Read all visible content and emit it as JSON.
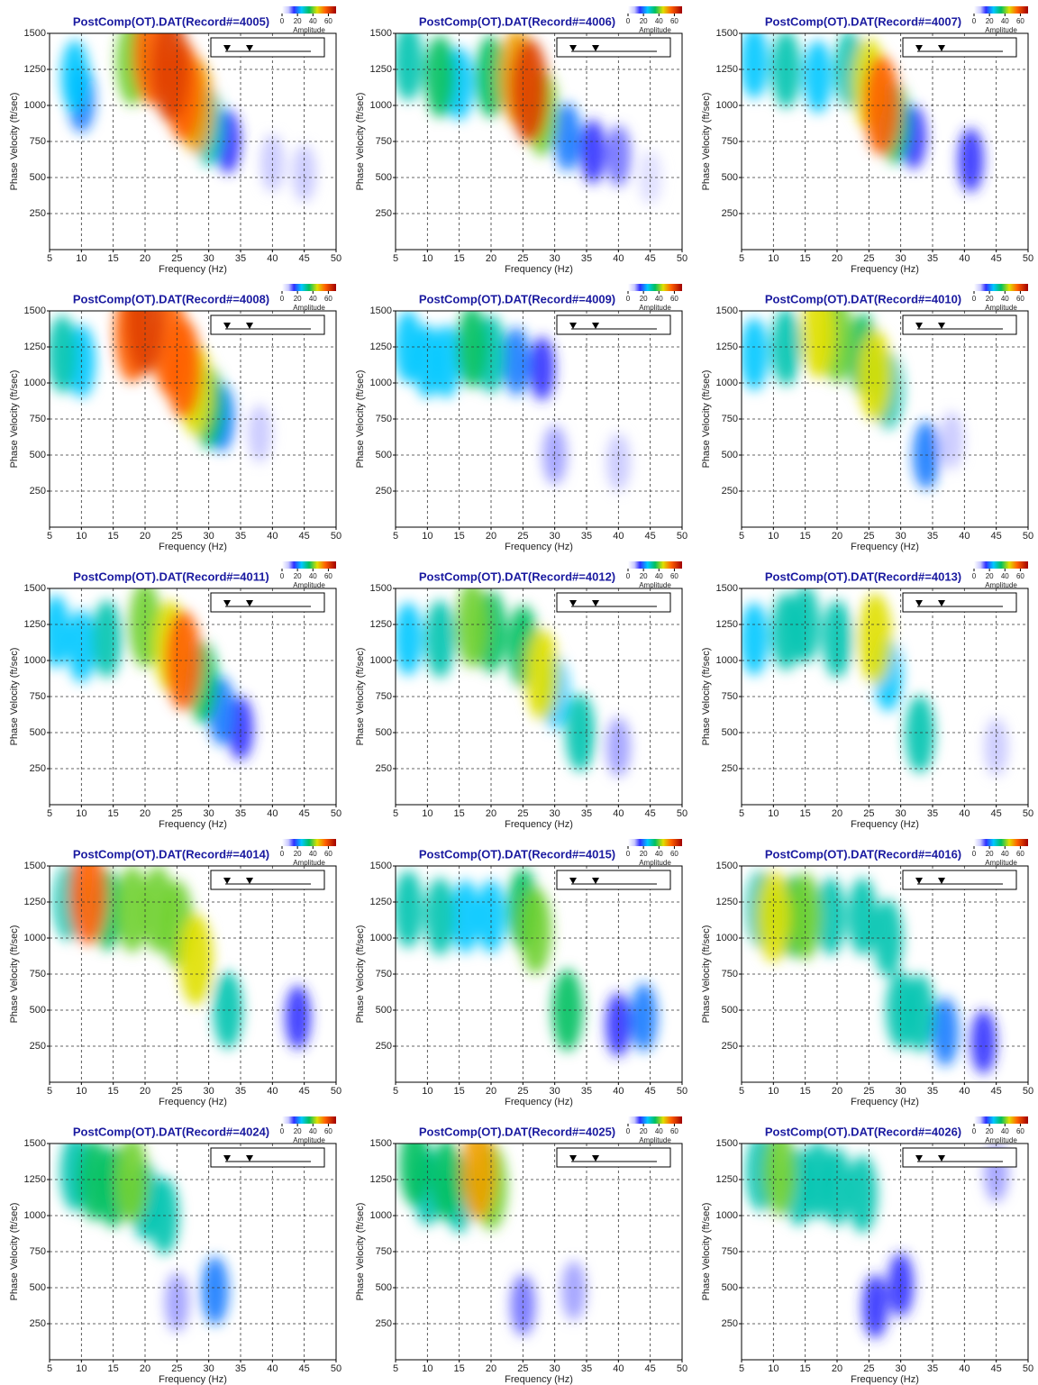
{
  "chart_data": [
    {
      "type": "heatmap",
      "title": "PostComp(OT).DAT(Record#=4005)",
      "xlabel": "Frequency (Hz)",
      "ylabel": "Phase Velocity (ft/sec)",
      "xlim": [
        5,
        50
      ],
      "ylim": [
        0,
        1500
      ],
      "xticks": [
        5,
        10,
        15,
        20,
        25,
        30,
        35,
        40,
        45,
        50
      ],
      "yticks": [
        250,
        500,
        750,
        1000,
        1250,
        1500
      ],
      "grid": true,
      "colorbar": {
        "label": "Amplitude",
        "lim": [
          0,
          70
        ],
        "ticks": [
          0,
          20,
          40,
          60
        ]
      },
      "x": [
        9,
        10,
        18,
        21,
        24,
        26,
        28,
        30,
        33,
        40,
        45
      ],
      "y": [
        1200,
        1050,
        1300,
        1350,
        1250,
        1100,
        1000,
        850,
        750,
        600,
        530
      ],
      "values": [
        25,
        20,
        40,
        55,
        60,
        55,
        50,
        30,
        15,
        8,
        8
      ]
    },
    {
      "type": "heatmap",
      "title": "PostComp(OT).DAT(Record#=4006)",
      "xlabel": "Frequency (Hz)",
      "ylabel": "Phase Velocity (ft/sec)",
      "xlim": [
        5,
        50
      ],
      "ylim": [
        0,
        1500
      ],
      "xticks": [
        5,
        10,
        15,
        20,
        25,
        30,
        35,
        40,
        45,
        50
      ],
      "yticks": [
        250,
        500,
        750,
        1000,
        1250,
        1500
      ],
      "grid": true,
      "colorbar": {
        "label": "Amplitude",
        "lim": [
          0,
          70
        ],
        "ticks": [
          0,
          20,
          40,
          60
        ]
      },
      "x": [
        7,
        12,
        15,
        20,
        24,
        26,
        28,
        32,
        36,
        40,
        45
      ],
      "y": [
        1300,
        1200,
        1150,
        1200,
        1200,
        1100,
        950,
        780,
        680,
        650,
        500
      ],
      "values": [
        30,
        35,
        25,
        35,
        50,
        60,
        40,
        20,
        15,
        12,
        5
      ]
    },
    {
      "type": "heatmap",
      "title": "PostComp(OT).DAT(Record#=4007)",
      "xlabel": "Frequency (Hz)",
      "ylabel": "Phase Velocity (ft/sec)",
      "xlim": [
        5,
        50
      ],
      "ylim": [
        0,
        1500
      ],
      "xticks": [
        5,
        10,
        15,
        20,
        25,
        30,
        35,
        40,
        45,
        50
      ],
      "yticks": [
        250,
        500,
        750,
        1000,
        1250,
        1500
      ],
      "grid": true,
      "colorbar": {
        "label": "Amplitude",
        "lim": [
          0,
          70
        ],
        "ticks": [
          0,
          20,
          40,
          60
        ]
      },
      "x": [
        7,
        12,
        17,
        22,
        25,
        27,
        29,
        32,
        41
      ],
      "y": [
        1300,
        1250,
        1200,
        1250,
        1150,
        1000,
        880,
        780,
        620
      ],
      "values": [
        25,
        30,
        25,
        30,
        45,
        55,
        35,
        15,
        15
      ]
    },
    {
      "type": "heatmap",
      "title": "PostComp(OT).DAT(Record#=4008)",
      "xlabel": "Frequency (Hz)",
      "ylabel": "Phase Velocity (ft/sec)",
      "xlim": [
        5,
        50
      ],
      "ylim": [
        0,
        1500
      ],
      "xticks": [
        5,
        10,
        15,
        20,
        25,
        30,
        35,
        40,
        45,
        50
      ],
      "yticks": [
        250,
        500,
        750,
        1000,
        1250,
        1500
      ],
      "grid": true,
      "colorbar": {
        "label": "Amplitude",
        "lim": [
          0,
          70
        ],
        "ticks": [
          0,
          20,
          40,
          60
        ]
      },
      "x": [
        7,
        10,
        18,
        20,
        24,
        26,
        28,
        30,
        32,
        38
      ],
      "y": [
        1200,
        1150,
        1350,
        1420,
        1250,
        1100,
        950,
        830,
        760,
        650
      ],
      "values": [
        30,
        25,
        55,
        60,
        55,
        55,
        45,
        35,
        20,
        8
      ]
    },
    {
      "type": "heatmap",
      "title": "PostComp(OT).DAT(Record#=4009)",
      "xlabel": "Frequency (Hz)",
      "ylabel": "Phase Velocity (ft/sec)",
      "xlim": [
        5,
        50
      ],
      "ylim": [
        0,
        1500
      ],
      "xticks": [
        5,
        10,
        15,
        20,
        25,
        30,
        35,
        40,
        45,
        50
      ],
      "yticks": [
        250,
        500,
        750,
        1000,
        1250,
        1500
      ],
      "grid": true,
      "colorbar": {
        "label": "Amplitude",
        "lim": [
          0,
          70
        ],
        "ticks": [
          0,
          20,
          40,
          60
        ]
      },
      "x": [
        7,
        10,
        13,
        17,
        20,
        24,
        28,
        30,
        40
      ],
      "y": [
        1250,
        1150,
        1150,
        1250,
        1200,
        1150,
        1100,
        500,
        450
      ],
      "values": [
        25,
        25,
        25,
        35,
        30,
        20,
        15,
        10,
        8
      ]
    },
    {
      "type": "heatmap",
      "title": "PostComp(OT).DAT(Record#=4010)",
      "xlabel": "Frequency (Hz)",
      "ylabel": "Phase Velocity (ft/sec)",
      "xlim": [
        5,
        50
      ],
      "ylim": [
        0,
        1500
      ],
      "xticks": [
        5,
        10,
        15,
        20,
        25,
        30,
        35,
        40,
        45,
        50
      ],
      "yticks": [
        250,
        500,
        750,
        1000,
        1250,
        1500
      ],
      "grid": true,
      "colorbar": {
        "label": "Amplitude",
        "lim": [
          0,
          70
        ],
        "ticks": [
          0,
          20,
          40,
          60
        ]
      },
      "x": [
        7,
        12,
        17,
        20,
        24,
        26,
        28,
        34,
        38
      ],
      "y": [
        1200,
        1250,
        1350,
        1300,
        1200,
        1050,
        950,
        500,
        600
      ],
      "values": [
        25,
        30,
        45,
        40,
        35,
        45,
        30,
        20,
        8
      ]
    },
    {
      "type": "heatmap",
      "title": "PostComp(OT).DAT(Record#=4011)",
      "xlabel": "Frequency (Hz)",
      "ylabel": "Phase Velocity (ft/sec)",
      "xlim": [
        5,
        50
      ],
      "ylim": [
        0,
        1500
      ],
      "xticks": [
        5,
        10,
        15,
        20,
        25,
        30,
        35,
        40,
        45,
        50
      ],
      "yticks": [
        250,
        500,
        750,
        1000,
        1250,
        1500
      ],
      "grid": true,
      "colorbar": {
        "label": "Amplitude",
        "lim": [
          0,
          70
        ],
        "ticks": [
          0,
          20,
          40,
          60
        ]
      },
      "x": [
        6,
        10,
        14,
        20,
        24,
        26,
        29,
        32,
        35
      ],
      "y": [
        1200,
        1100,
        1150,
        1250,
        1100,
        1000,
        850,
        650,
        530
      ],
      "values": [
        25,
        25,
        30,
        40,
        45,
        55,
        35,
        20,
        15
      ]
    },
    {
      "type": "heatmap",
      "title": "PostComp(OT).DAT(Record#=4012)",
      "xlabel": "Frequency (Hz)",
      "ylabel": "Phase Velocity (ft/sec)",
      "xlim": [
        5,
        50
      ],
      "ylim": [
        0,
        1500
      ],
      "xticks": [
        5,
        10,
        15,
        20,
        25,
        30,
        35,
        40,
        45,
        50
      ],
      "yticks": [
        250,
        500,
        750,
        1000,
        1250,
        1500
      ],
      "grid": true,
      "colorbar": {
        "label": "Amplitude",
        "lim": [
          0,
          70
        ],
        "ticks": [
          0,
          20,
          40,
          60
        ]
      },
      "x": [
        7,
        12,
        17,
        20,
        25,
        28,
        30,
        34,
        40
      ],
      "y": [
        1150,
        1150,
        1250,
        1200,
        1100,
        900,
        780,
        500,
        400
      ],
      "values": [
        25,
        30,
        40,
        35,
        35,
        45,
        25,
        30,
        10
      ]
    },
    {
      "type": "heatmap",
      "title": "PostComp(OT).DAT(Record#=4013)",
      "xlabel": "Frequency (Hz)",
      "ylabel": "Phase Velocity (ft/sec)",
      "xlim": [
        5,
        50
      ],
      "ylim": [
        0,
        1500
      ],
      "xticks": [
        5,
        10,
        15,
        20,
        25,
        30,
        35,
        40,
        45,
        50
      ],
      "yticks": [
        250,
        500,
        750,
        1000,
        1250,
        1500
      ],
      "grid": true,
      "colorbar": {
        "label": "Amplitude",
        "lim": [
          0,
          70
        ],
        "ticks": [
          0,
          20,
          40,
          60
        ]
      },
      "x": [
        7,
        12,
        15,
        20,
        26,
        28,
        33,
        45
      ],
      "y": [
        1150,
        1200,
        1250,
        1150,
        1150,
        900,
        490,
        400
      ],
      "values": [
        25,
        30,
        30,
        30,
        45,
        25,
        30,
        8
      ]
    },
    {
      "type": "heatmap",
      "title": "PostComp(OT).DAT(Record#=4014)",
      "xlabel": "Frequency (Hz)",
      "ylabel": "Phase Velocity (ft/sec)",
      "xlim": [
        5,
        50
      ],
      "ylim": [
        0,
        1500
      ],
      "xticks": [
        5,
        10,
        15,
        20,
        25,
        30,
        35,
        40,
        45,
        50
      ],
      "yticks": [
        250,
        500,
        750,
        1000,
        1250,
        1500
      ],
      "grid": true,
      "colorbar": {
        "label": "Amplitude",
        "lim": [
          0,
          70
        ],
        "ticks": [
          0,
          20,
          40,
          60
        ]
      },
      "x": [
        8,
        11,
        14,
        18,
        22,
        25,
        28,
        33,
        44
      ],
      "y": [
        1250,
        1300,
        1200,
        1200,
        1200,
        1100,
        850,
        500,
        450
      ],
      "values": [
        30,
        55,
        35,
        40,
        40,
        40,
        45,
        30,
        15
      ]
    },
    {
      "type": "heatmap",
      "title": "PostComp(OT).DAT(Record#=4015)",
      "xlabel": "Frequency (Hz)",
      "ylabel": "Phase Velocity (ft/sec)",
      "xlim": [
        5,
        50
      ],
      "ylim": [
        0,
        1500
      ],
      "xticks": [
        5,
        10,
        15,
        20,
        25,
        30,
        35,
        40,
        45,
        50
      ],
      "yticks": [
        250,
        500,
        750,
        1000,
        1250,
        1500
      ],
      "grid": true,
      "colorbar": {
        "label": "Amplitude",
        "lim": [
          0,
          70
        ],
        "ticks": [
          0,
          20,
          40,
          60
        ]
      },
      "x": [
        7,
        12,
        16,
        20,
        25,
        27,
        32,
        44,
        40
      ],
      "y": [
        1200,
        1150,
        1150,
        1150,
        1200,
        1050,
        500,
        450,
        400
      ],
      "values": [
        30,
        30,
        25,
        25,
        35,
        40,
        35,
        20,
        15
      ]
    },
    {
      "type": "heatmap",
      "title": "PostComp(OT).DAT(Record#=4016)",
      "xlabel": "Frequency (Hz)",
      "ylabel": "Phase Velocity (ft/sec)",
      "xlim": [
        5,
        50
      ],
      "ylim": [
        0,
        1500
      ],
      "xticks": [
        5,
        10,
        15,
        20,
        25,
        30,
        35,
        40,
        45,
        50
      ],
      "yticks": [
        250,
        500,
        750,
        1000,
        1250,
        1500
      ],
      "grid": true,
      "colorbar": {
        "label": "Amplitude",
        "lim": [
          0,
          70
        ],
        "ticks": [
          0,
          20,
          40,
          60
        ]
      },
      "x": [
        8,
        10,
        13,
        15,
        19,
        24,
        28,
        30,
        33,
        37,
        43
      ],
      "y": [
        1200,
        1150,
        1150,
        1150,
        1150,
        1150,
        1000,
        500,
        480,
        350,
        280
      ],
      "values": [
        30,
        45,
        35,
        40,
        30,
        30,
        30,
        30,
        30,
        20,
        15
      ]
    },
    {
      "type": "heatmap",
      "title": "PostComp(OT).DAT(Record#=4024)",
      "xlabel": "Frequency (Hz)",
      "ylabel": "Phase Velocity (ft/sec)",
      "xlim": [
        5,
        50
      ],
      "ylim": [
        0,
        1500
      ],
      "xticks": [
        5,
        10,
        15,
        20,
        25,
        30,
        35,
        40,
        45,
        50
      ],
      "yticks": [
        250,
        500,
        750,
        1000,
        1250,
        1500
      ],
      "grid": true,
      "colorbar": {
        "label": "Amplitude",
        "lim": [
          0,
          70
        ],
        "ticks": [
          0,
          20,
          40,
          60
        ]
      },
      "x": [
        9,
        12,
        15,
        18,
        20,
        23,
        31,
        25
      ],
      "y": [
        1300,
        1250,
        1200,
        1250,
        1100,
        1000,
        480,
        400
      ],
      "values": [
        30,
        35,
        35,
        40,
        30,
        30,
        20,
        10
      ]
    },
    {
      "type": "heatmap",
      "title": "PostComp(OT).DAT(Record#=4025)",
      "xlabel": "Frequency (Hz)",
      "ylabel": "Phase Velocity (ft/sec)",
      "xlim": [
        5,
        50
      ],
      "ylim": [
        0,
        1500
      ],
      "xticks": [
        5,
        10,
        15,
        20,
        25,
        30,
        35,
        40,
        45,
        50
      ],
      "yticks": [
        250,
        500,
        750,
        1000,
        1250,
        1500
      ],
      "grid": true,
      "colorbar": {
        "label": "Amplitude",
        "lim": [
          0,
          70
        ],
        "ticks": [
          0,
          20,
          40,
          60
        ]
      },
      "x": [
        8,
        10,
        13,
        15,
        18,
        20,
        25,
        33
      ],
      "y": [
        1350,
        1200,
        1250,
        1150,
        1300,
        1200,
        380,
        480
      ],
      "values": [
        35,
        30,
        35,
        30,
        50,
        40,
        12,
        10
      ]
    },
    {
      "type": "heatmap",
      "title": "PostComp(OT).DAT(Record#=4026)",
      "xlabel": "Frequency (Hz)",
      "ylabel": "Phase Velocity (ft/sec)",
      "xlim": [
        5,
        50
      ],
      "ylim": [
        0,
        1500
      ],
      "xticks": [
        5,
        10,
        15,
        20,
        25,
        30,
        35,
        40,
        45,
        50
      ],
      "yticks": [
        250,
        500,
        750,
        1000,
        1250,
        1500
      ],
      "grid": true,
      "colorbar": {
        "label": "Amplitude",
        "lim": [
          0,
          70
        ],
        "ticks": [
          0,
          20,
          40,
          60
        ]
      },
      "x": [
        8,
        11,
        14,
        17,
        20,
        24,
        26,
        30,
        45
      ],
      "y": [
        1300,
        1300,
        1200,
        1250,
        1200,
        1150,
        370,
        520,
        1300
      ],
      "values": [
        30,
        40,
        30,
        30,
        30,
        30,
        15,
        15,
        10
      ]
    }
  ]
}
